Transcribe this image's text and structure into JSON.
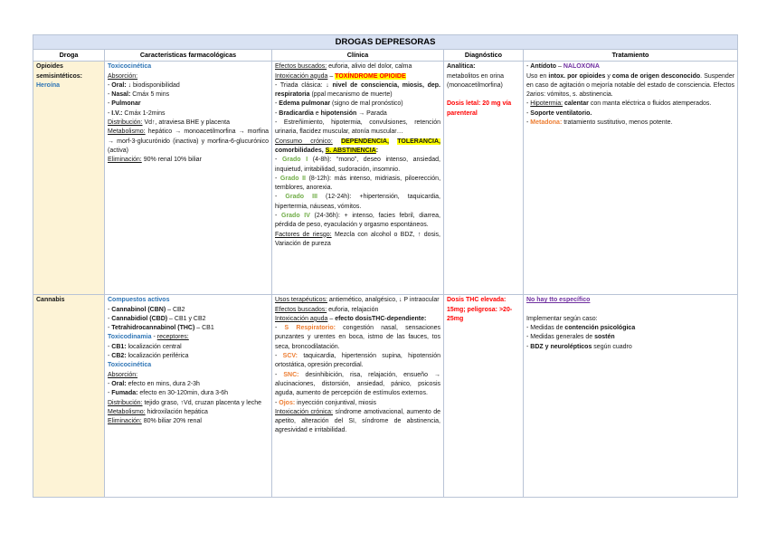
{
  "page": {
    "title": "DROGAS DEPRESORAS"
  },
  "colors": {
    "title_bar_bg": "#d9e2f3",
    "drug_column_bg": "#fdf3d6",
    "table_border": "#b9c4d6",
    "heading_blue": "#2e75b6",
    "grade_green": "#70ad47",
    "accent_orange": "#ed7d31",
    "alert_red": "#ff0000",
    "accent_purple": "#7030a0",
    "highlight_yellow": "#ffff00"
  },
  "table": {
    "columns": [
      "Droga",
      "Características farmacológicas",
      "Clínica",
      "Diagnóstico",
      "Tratamiento"
    ],
    "rows": [
      {
        "drug": [
          [
            [
              "Opioides semisintéticos:",
              "b"
            ]
          ],
          [
            [
              "Heroína",
              "b blue"
            ]
          ]
        ],
        "pharma": [
          [
            [
              "Toxicocinética",
              "b blue"
            ]
          ],
          [
            [
              "Absorción:",
              "u"
            ]
          ],
          [
            [
              "- ",
              ""
            ],
            [
              "Oral:",
              "b"
            ],
            [
              " ↓ biodisponibilidad",
              ""
            ]
          ],
          [
            [
              "- ",
              ""
            ],
            [
              "Nasal:",
              "b"
            ],
            [
              " Cmáx 5 mins",
              ""
            ]
          ],
          [
            [
              "- ",
              ""
            ],
            [
              "Pulmonar",
              "b"
            ]
          ],
          [
            [
              "- ",
              ""
            ],
            [
              "I.V.:",
              "b"
            ],
            [
              " Cmáx 1-2mins",
              ""
            ]
          ],
          [
            [
              "Distribución:",
              "u"
            ],
            [
              " Vd↑, atraviesa BHE y placenta",
              ""
            ]
          ],
          [
            [
              "Metabolismo:",
              "u"
            ],
            [
              " hepático → monoacetilmorfina → morfina → morf-3-glucurónido (inactiva) y morfina-6-glucurónico (activa)",
              ""
            ]
          ],
          [
            [
              "Eliminación:",
              "u"
            ],
            [
              " 90% renal 10% biliar",
              ""
            ]
          ]
        ],
        "clinic": [
          [
            [
              "Efectos buscados:",
              "u"
            ],
            [
              " euforia, alivio del dolor, calma",
              ""
            ]
          ],
          [
            [
              "Intoxicación aguda",
              "u"
            ],
            [
              " – ",
              ""
            ],
            [
              "TOXÍNDROME OPIOIDE",
              "b red hl"
            ]
          ],
          [
            [
              "- Triada clásica: ↓ ",
              ""
            ],
            [
              "nivel de consciencia, miosis, dep. respiratoria",
              "b"
            ],
            [
              " (ppal mecanismo de muerte)",
              ""
            ]
          ],
          [
            [
              "- ",
              ""
            ],
            [
              "Edema pulmonar",
              "b"
            ],
            [
              " (signo de mal pronóstico)",
              ""
            ]
          ],
          [
            [
              "- ",
              ""
            ],
            [
              "Bradicardia",
              "b"
            ],
            [
              " e ",
              ""
            ],
            [
              "hipotensión",
              "b"
            ],
            [
              " → Parada",
              ""
            ]
          ],
          [
            [
              "- Estreñimiento, hipotermia, convulsiones, retención urinaria, flacidez muscular, atonía muscular…",
              ""
            ]
          ],
          [
            [
              "Consumo crónico:",
              "u"
            ],
            [
              " ",
              ""
            ],
            [
              "DEPENDENCIA,",
              "b hl"
            ],
            [
              " ",
              ""
            ],
            [
              "TOLERANCIA,",
              "b hl"
            ],
            [
              " ",
              ""
            ],
            [
              "comorbilidades,",
              "b"
            ],
            [
              " ",
              ""
            ],
            [
              "S. ABSTINENCIA",
              "b u hl"
            ],
            [
              ":",
              "b"
            ]
          ],
          [
            [
              "- ",
              ""
            ],
            [
              "Grado I",
              "b green"
            ],
            [
              " (4-8h): “mono”, deseo intenso, ansiedad, inquietud, irritabilidad, sudoración, insomnio.",
              ""
            ]
          ],
          [
            [
              "- ",
              ""
            ],
            [
              "Grado II",
              "b green"
            ],
            [
              " (8-12h): más intenso, midriasis, piloerección, temblores, anorexia.",
              ""
            ]
          ],
          [
            [
              "- ",
              ""
            ],
            [
              "Grado III",
              "b green"
            ],
            [
              " (12-24h): +hipertensión, taquicardia, hipertermia, náuseas, vómitos.",
              ""
            ]
          ],
          [
            [
              "- ",
              ""
            ],
            [
              "Grado IV",
              "b green"
            ],
            [
              " (24-36h): + intenso, facies febril, diarrea, pérdida de peso, eyaculación y orgasmo espontáneos.",
              ""
            ]
          ],
          [
            [
              "Factores de riesgo:",
              "u"
            ],
            [
              " Mezcla con alcohol o BDZ, ↑ dosis, Variación de pureza",
              ""
            ]
          ]
        ],
        "diag": [
          [
            [
              "Analítica:",
              "b"
            ]
          ],
          [
            [
              "metabolitos en orina (monoacetilmorfina)",
              ""
            ]
          ],
          [],
          [
            [
              "Dosis letal: 20 mg vía parenteral",
              "b red"
            ]
          ]
        ],
        "treat": [
          [
            [
              "- ",
              ""
            ],
            [
              "Antídoto",
              "b"
            ],
            [
              " – ",
              ""
            ],
            [
              "NALOXONA",
              "b purple"
            ]
          ],
          [
            [
              "Uso en ",
              ""
            ],
            [
              "intox. por opioides",
              "b"
            ],
            [
              " y ",
              ""
            ],
            [
              "coma de origen desconocido",
              "b"
            ],
            [
              ". Suspender en caso de agitación o mejoría notable del estado de consciencia. Efectos 2arios: vómitos, s. abstinencia.",
              ""
            ]
          ],
          [
            [
              "- ",
              ""
            ],
            [
              "Hipotermia:",
              "u"
            ],
            [
              " ",
              ""
            ],
            [
              "calentar",
              "b"
            ],
            [
              " con manta eléctrica o fluidos atemperados.",
              ""
            ]
          ],
          [
            [
              "- ",
              ""
            ],
            [
              "Soporte ventilatorio.",
              "b"
            ]
          ],
          [
            [
              "- ",
              ""
            ],
            [
              "Metadona:",
              "b orange"
            ],
            [
              " tratamiento sustitutivo, menos potente.",
              ""
            ]
          ]
        ]
      },
      {
        "drug": [
          [
            [
              "Cannabis",
              "b"
            ]
          ]
        ],
        "pharma": [
          [
            [
              "Compuestos activos",
              "b blue"
            ]
          ],
          [
            [
              "- ",
              ""
            ],
            [
              "Cannabinol (CBN)",
              "b"
            ],
            [
              " – CB2",
              ""
            ]
          ],
          [
            [
              "- ",
              ""
            ],
            [
              "Cannabidiol (CBD)",
              "b"
            ],
            [
              " – CB1 y CB2",
              ""
            ]
          ],
          [
            [
              "- ",
              ""
            ],
            [
              "Tetrahidrocannabinol (THC)",
              "b"
            ],
            [
              " – CB1",
              ""
            ]
          ],
          [
            [
              "Toxicodinamia",
              "b blue"
            ],
            [
              " - ",
              ""
            ],
            [
              "receptores:",
              "u"
            ]
          ],
          [
            [
              "- ",
              ""
            ],
            [
              "CB1:",
              "b"
            ],
            [
              " localización central",
              ""
            ]
          ],
          [
            [
              "- ",
              ""
            ],
            [
              "CB2:",
              "b"
            ],
            [
              " localización periférica",
              ""
            ]
          ],
          [
            [
              "Toxicocinética",
              "b blue"
            ]
          ],
          [
            [
              "Absorción:",
              "u"
            ]
          ],
          [
            [
              "- ",
              ""
            ],
            [
              "Oral:",
              "b"
            ],
            [
              " efecto en mins, dura 2-3h",
              ""
            ]
          ],
          [
            [
              "- ",
              ""
            ],
            [
              "Fumada:",
              "b"
            ],
            [
              " efecto en 30-120min, dura 3-6h",
              ""
            ]
          ],
          [
            [
              "Distribución:",
              "u"
            ],
            [
              " tejido graso, ↑Vd, cruzan placenta y leche",
              ""
            ]
          ],
          [
            [
              "Metabolismo:",
              "u"
            ],
            [
              " hidroxilación hepática",
              ""
            ]
          ],
          [
            [
              "Eliminación:",
              "u"
            ],
            [
              " 80% biliar 20% renal",
              ""
            ]
          ]
        ],
        "clinic": [
          [
            [
              "Usos terapéuticos:",
              "u"
            ],
            [
              " antiemético, analgésico, ↓ P intraocular",
              ""
            ]
          ],
          [
            [
              "Efectos buscados:",
              "u"
            ],
            [
              " euforia, relajación",
              ""
            ]
          ],
          [
            [
              "Intoxicación aguda",
              "u"
            ],
            [
              " – ",
              ""
            ],
            [
              "efecto dosisTHC-dependiente:",
              "b"
            ]
          ],
          [
            [
              "- ",
              ""
            ],
            [
              "S Respiratorio:",
              "b orange"
            ],
            [
              " congestión nasal, sensaciones punzantes y urentes en boca, istmo de las fauces, tos seca, broncodilatación.",
              ""
            ]
          ],
          [
            [
              "- ",
              ""
            ],
            [
              "SCV:",
              "b orange"
            ],
            [
              " taquicardia, hipertensión supina, hipotensión ortostática, opresión precordial.",
              ""
            ]
          ],
          [
            [
              "- ",
              ""
            ],
            [
              "SNC:",
              "b orange"
            ],
            [
              " desinhibición, risa, relajación, ensueño → alucinaciones, distorsión, ansiedad, pánico, psicosis aguda, aumento de percepción de estímulos externos.",
              ""
            ]
          ],
          [
            [
              "- ",
              ""
            ],
            [
              "Ojos:",
              "b orange"
            ],
            [
              " inyección conjuntival, miosis",
              ""
            ]
          ],
          [
            [
              "Intoxicación crónica:",
              "u"
            ],
            [
              " síndrome amotivacional, aumento de apetito, alteración del SI, síndrome de abstinencia, agresividad e irritabilidad.",
              ""
            ]
          ]
        ],
        "diag": [
          [
            [
              "Dosis THC elevada: 15mg; peligrosa: >20-25mg",
              "b red"
            ]
          ]
        ],
        "treat": [
          [
            [
              "No hay tto específico",
              "b u purple"
            ]
          ],
          [],
          [
            [
              "Implementar según caso:",
              ""
            ]
          ],
          [
            [
              "- Medidas de ",
              ""
            ],
            [
              "contención psicológica",
              "b"
            ]
          ],
          [
            [
              "- Medidas generales de ",
              ""
            ],
            [
              "sostén",
              "b"
            ]
          ],
          [
            [
              "- ",
              ""
            ],
            [
              "BDZ y neurolépticos",
              "b"
            ],
            [
              " según cuadro",
              ""
            ]
          ]
        ]
      }
    ]
  }
}
